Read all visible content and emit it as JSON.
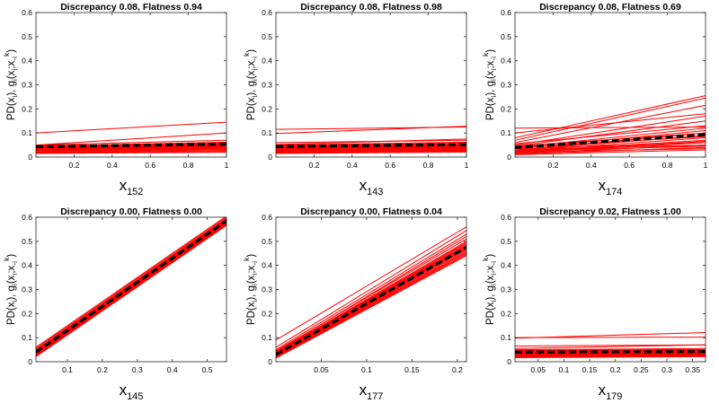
{
  "chart_data": [
    {
      "type": "line",
      "title": "Discrepancy 0.08, Flatness 0.94",
      "xlabel": "x",
      "xlabel_sub": "152",
      "ylabel": "PD(x_i), g_i(x_i;x_-i^k)",
      "xlim": [
        0,
        1
      ],
      "ylim": [
        0,
        0.6
      ],
      "xticks": [
        0.2,
        0.4,
        0.6,
        0.8,
        1
      ],
      "xtick_labels": [
        "0.2",
        "0.4",
        "0.6",
        "0.8",
        "1"
      ],
      "yticks": [
        0,
        0.1,
        0.2,
        0.3,
        0.4,
        0.5,
        0.6
      ],
      "ytick_labels": [
        "0",
        "0.1",
        "0.2",
        "0.3",
        "0.4",
        "0.5",
        "0.6"
      ],
      "pd_line": {
        "x": [
          0,
          1
        ],
        "y": [
          0.043,
          0.054
        ]
      },
      "ice_lines": [
        [
          0.1,
          0.145
        ],
        [
          0.05,
          0.1
        ],
        [
          0.05,
          0.07
        ],
        [
          0.045,
          0.062
        ],
        [
          0.042,
          0.058
        ],
        [
          0.04,
          0.055
        ],
        [
          0.038,
          0.052
        ],
        [
          0.036,
          0.05
        ],
        [
          0.034,
          0.046
        ],
        [
          0.032,
          0.044
        ],
        [
          0.03,
          0.04
        ],
        [
          0.028,
          0.038
        ],
        [
          0.025,
          0.033
        ],
        [
          0.022,
          0.03
        ],
        [
          0.02,
          0.026
        ],
        [
          0.018,
          0.022
        ],
        [
          0.015,
          0.02
        ],
        [
          0.044,
          0.048
        ],
        [
          0.046,
          0.051
        ],
        [
          0.048,
          0.055
        ],
        [
          0.039,
          0.045
        ],
        [
          0.041,
          0.049
        ],
        [
          0.037,
          0.043
        ],
        [
          0.026,
          0.035
        ],
        [
          0.033,
          0.039
        ]
      ]
    },
    {
      "type": "line",
      "title": "Discrepancy 0.08, Flatness 0.98",
      "xlabel": "x",
      "xlabel_sub": "143",
      "ylabel": "PD(x_i), g_i(x_i;x_-i^k)",
      "xlim": [
        0,
        1
      ],
      "ylim": [
        0,
        0.6
      ],
      "xticks": [
        0.2,
        0.4,
        0.6,
        0.8,
        1
      ],
      "xtick_labels": [
        "0.2",
        "0.4",
        "0.6",
        "0.8",
        "1"
      ],
      "yticks": [
        0,
        0.1,
        0.2,
        0.3,
        0.4,
        0.5,
        0.6
      ],
      "ytick_labels": [
        "0",
        "0.1",
        "0.2",
        "0.3",
        "0.4",
        "0.5",
        "0.6"
      ],
      "pd_line": {
        "x": [
          0,
          1
        ],
        "y": [
          0.044,
          0.052
        ]
      },
      "ice_lines": [
        [
          0.115,
          0.125
        ],
        [
          0.098,
          0.128
        ],
        [
          0.06,
          0.07
        ],
        [
          0.052,
          0.075
        ],
        [
          0.05,
          0.062
        ],
        [
          0.047,
          0.058
        ],
        [
          0.045,
          0.055
        ],
        [
          0.043,
          0.052
        ],
        [
          0.041,
          0.05
        ],
        [
          0.039,
          0.048
        ],
        [
          0.037,
          0.046
        ],
        [
          0.035,
          0.044
        ],
        [
          0.033,
          0.042
        ],
        [
          0.031,
          0.04
        ],
        [
          0.029,
          0.038
        ],
        [
          0.027,
          0.036
        ],
        [
          0.025,
          0.034
        ],
        [
          0.023,
          0.032
        ],
        [
          0.021,
          0.03
        ],
        [
          0.019,
          0.027
        ],
        [
          0.017,
          0.024
        ],
        [
          0.015,
          0.021
        ],
        [
          0.046,
          0.048
        ],
        [
          0.042,
          0.044
        ],
        [
          0.038,
          0.041
        ]
      ]
    },
    {
      "type": "line",
      "title": "Discrepancy 0.08, Flatness 0.69",
      "xlabel": "x",
      "xlabel_sub": "174",
      "ylabel": "PD(x_i), g_i(x_i;x_-i^k)",
      "xlim": [
        0,
        1
      ],
      "ylim": [
        0,
        0.6
      ],
      "xticks": [
        0.2,
        0.4,
        0.6,
        0.8,
        1
      ],
      "xtick_labels": [
        "0.2",
        "0.4",
        "0.6",
        "0.8",
        "1"
      ],
      "yticks": [
        0,
        0.1,
        0.2,
        0.3,
        0.4,
        0.5,
        0.6
      ],
      "ytick_labels": [
        "0",
        "0.1",
        "0.2",
        "0.3",
        "0.4",
        "0.5",
        "0.6"
      ],
      "pd_line": {
        "x": [
          0,
          1
        ],
        "y": [
          0.04,
          0.093
        ]
      },
      "ice_lines": [
        [
          0.12,
          0.125
        ],
        [
          0.1,
          0.18
        ],
        [
          0.08,
          0.255
        ],
        [
          0.07,
          0.245
        ],
        [
          0.06,
          0.215
        ],
        [
          0.05,
          0.17
        ],
        [
          0.045,
          0.15
        ],
        [
          0.04,
          0.12
        ],
        [
          0.035,
          0.11
        ],
        [
          0.03,
          0.1
        ],
        [
          0.028,
          0.09
        ],
        [
          0.025,
          0.08
        ],
        [
          0.022,
          0.07
        ],
        [
          0.02,
          0.065
        ],
        [
          0.018,
          0.06
        ],
        [
          0.015,
          0.05
        ],
        [
          0.012,
          0.04
        ],
        [
          0.01,
          0.03
        ],
        [
          0.03,
          0.05
        ],
        [
          0.035,
          0.06
        ],
        [
          0.04,
          0.085
        ],
        [
          0.055,
          0.13
        ],
        [
          0.025,
          0.045
        ],
        [
          0.045,
          0.1
        ],
        [
          0.02,
          0.035
        ]
      ]
    },
    {
      "type": "line",
      "title": "Discrepancy 0.00, Flatness 0.00",
      "xlabel": "x",
      "xlabel_sub": "145",
      "ylabel": "PD(x_i), g_i(x_i;x_-i^k)",
      "xlim": [
        0.01,
        0.555
      ],
      "ylim": [
        0,
        0.6
      ],
      "xticks": [
        0.1,
        0.2,
        0.3,
        0.4,
        0.5
      ],
      "xtick_labels": [
        "0.1",
        "0.2",
        "0.3",
        "0.4",
        "0.5"
      ],
      "yticks": [
        0,
        0.1,
        0.2,
        0.3,
        0.4,
        0.5,
        0.6
      ],
      "ytick_labels": [
        "0",
        "0.1",
        "0.2",
        "0.3",
        "0.4",
        "0.5",
        "0.6"
      ],
      "pd_line": {
        "x": [
          0.01,
          0.555
        ],
        "y": [
          0.04,
          0.585
        ]
      },
      "ice_lines": [
        [
          0.06,
          0.605
        ],
        [
          0.055,
          0.6
        ],
        [
          0.05,
          0.595
        ],
        [
          0.047,
          0.592
        ],
        [
          0.045,
          0.59
        ],
        [
          0.043,
          0.588
        ],
        [
          0.041,
          0.586
        ],
        [
          0.039,
          0.584
        ],
        [
          0.037,
          0.582
        ],
        [
          0.035,
          0.58
        ],
        [
          0.033,
          0.578
        ],
        [
          0.031,
          0.576
        ],
        [
          0.029,
          0.574
        ],
        [
          0.027,
          0.572
        ],
        [
          0.025,
          0.57
        ],
        [
          0.023,
          0.568
        ],
        [
          0.021,
          0.566
        ],
        [
          0.04,
          0.587
        ],
        [
          0.036,
          0.583
        ],
        [
          0.042,
          0.589
        ]
      ]
    },
    {
      "type": "line",
      "title": "Discrepancy 0.00, Flatness 0.04",
      "xlabel": "x",
      "xlabel_sub": "177",
      "ylabel": "PD(x_i), g_i(x_i;x_-i^k)",
      "xlim": [
        0,
        0.21
      ],
      "ylim": [
        0,
        0.6
      ],
      "xticks": [
        0.05,
        0.1,
        0.15,
        0.2
      ],
      "xtick_labels": [
        "0.05",
        "0.1",
        "0.15",
        "0.2"
      ],
      "yticks": [
        0,
        0.1,
        0.2,
        0.3,
        0.4,
        0.5,
        0.6
      ],
      "ytick_labels": [
        "0",
        "0.1",
        "0.2",
        "0.3",
        "0.4",
        "0.5",
        "0.6"
      ],
      "pd_line": {
        "x": [
          0,
          0.21
        ],
        "y": [
          0.03,
          0.475
        ]
      },
      "ice_lines": [
        [
          0.09,
          0.56
        ],
        [
          0.06,
          0.545
        ],
        [
          0.05,
          0.53
        ],
        [
          0.045,
          0.51
        ],
        [
          0.04,
          0.5
        ],
        [
          0.038,
          0.495
        ],
        [
          0.036,
          0.49
        ],
        [
          0.034,
          0.485
        ],
        [
          0.032,
          0.48
        ],
        [
          0.03,
          0.475
        ],
        [
          0.028,
          0.47
        ],
        [
          0.026,
          0.465
        ],
        [
          0.024,
          0.46
        ],
        [
          0.022,
          0.455
        ],
        [
          0.02,
          0.45
        ],
        [
          0.018,
          0.445
        ],
        [
          0.025,
          0.48
        ],
        [
          0.035,
          0.47
        ],
        [
          0.042,
          0.52
        ],
        [
          0.015,
          0.44
        ]
      ]
    },
    {
      "type": "line",
      "title": "Discrepancy 0.02, Flatness 1.00",
      "xlabel": "x",
      "xlabel_sub": "179",
      "ylabel": "PD(x_i), g_i(x_i;x_-i^k)",
      "xlim": [
        0.005,
        0.375
      ],
      "ylim": [
        0,
        0.6
      ],
      "xticks": [
        0.05,
        0.1,
        0.15,
        0.2,
        0.25,
        0.3,
        0.35
      ],
      "xtick_labels": [
        "0.05",
        "0.1",
        "0.15",
        "0.2",
        "0.25",
        "0.3",
        "0.35"
      ],
      "yticks": [
        0,
        0.1,
        0.2,
        0.3,
        0.4,
        0.5,
        0.6
      ],
      "ytick_labels": [
        "0",
        "0.1",
        "0.2",
        "0.3",
        "0.4",
        "0.5",
        "0.6"
      ],
      "pd_line": {
        "x": [
          0.005,
          0.375
        ],
        "y": [
          0.04,
          0.042
        ]
      },
      "ice_lines": [
        [
          0.1,
          0.102
        ],
        [
          0.098,
          0.121
        ],
        [
          0.065,
          0.07
        ],
        [
          0.055,
          0.07
        ],
        [
          0.05,
          0.055
        ],
        [
          0.047,
          0.051
        ],
        [
          0.045,
          0.049
        ],
        [
          0.043,
          0.047
        ],
        [
          0.041,
          0.045
        ],
        [
          0.039,
          0.043
        ],
        [
          0.037,
          0.041
        ],
        [
          0.035,
          0.039
        ],
        [
          0.033,
          0.037
        ],
        [
          0.031,
          0.035
        ],
        [
          0.029,
          0.033
        ],
        [
          0.027,
          0.031
        ],
        [
          0.025,
          0.029
        ],
        [
          0.023,
          0.027
        ],
        [
          0.021,
          0.025
        ],
        [
          0.019,
          0.023
        ],
        [
          0.017,
          0.021
        ]
      ]
    }
  ]
}
